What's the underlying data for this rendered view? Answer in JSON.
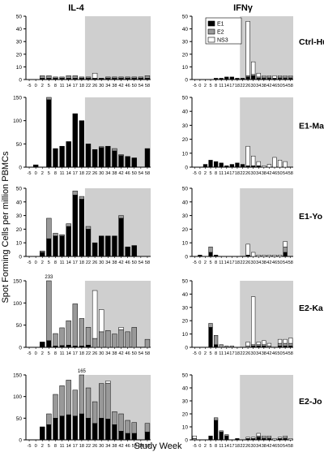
{
  "figure": {
    "col_titles": [
      "IL-4",
      "IFNγ"
    ],
    "row_labels": [
      "Ctrl-Hu",
      "E1-Ma",
      "E1-Yo",
      "E2-Ka",
      "E2-Jo"
    ],
    "ylabel": "Spot Forming Cells per million PBMCs",
    "xlabel": "Study Week",
    "legend": [
      "E1",
      "E2",
      "NS3"
    ],
    "colors": {
      "E1": "#000000",
      "E2": "#999999",
      "NS3": "#ffffff",
      "shade": "#cfcfcf"
    }
  },
  "chart_data": [
    {
      "type": "bar",
      "panel": "IL-4 Ctrl-Hu",
      "stacked": true,
      "categories": [
        "-5",
        "0",
        "2",
        "5",
        "8",
        "11",
        "14",
        "17",
        "18",
        "22",
        "26",
        "30",
        "34",
        "38",
        "42",
        "46",
        "50",
        "54",
        "58"
      ],
      "ylim": [
        0,
        50
      ],
      "yticks": [
        0,
        10,
        20,
        30,
        40,
        50
      ],
      "shaded_from": "22",
      "series": [
        {
          "name": "E1",
          "values": [
            0,
            0,
            1,
            1,
            1,
            1,
            1,
            1,
            1,
            1,
            1,
            1,
            1,
            1,
            1,
            1,
            1,
            1,
            1
          ]
        },
        {
          "name": "E2",
          "values": [
            0,
            0,
            2,
            2,
            1,
            1,
            2,
            2,
            1,
            1,
            0,
            0,
            1,
            1,
            1,
            1,
            1,
            1,
            2
          ]
        },
        {
          "name": "NS3",
          "values": [
            0,
            0,
            0,
            0,
            0,
            0,
            0,
            0,
            0,
            0,
            4,
            0,
            0,
            0,
            0,
            0,
            0,
            0,
            0
          ]
        }
      ]
    },
    {
      "type": "bar",
      "panel": "IFNγ Ctrl-Hu",
      "stacked": true,
      "categories": [
        "-5",
        "0",
        "2",
        "5",
        "8",
        "11",
        "14",
        "17",
        "18",
        "22",
        "26",
        "30",
        "34",
        "38",
        "42",
        "46",
        "50",
        "54",
        "58"
      ],
      "ylim": [
        0,
        50
      ],
      "yticks": [
        0,
        10,
        20,
        30,
        40,
        50
      ],
      "shaded_from": "22",
      "series": [
        {
          "name": "E1",
          "values": [
            0,
            0,
            0,
            0,
            1,
            1,
            2,
            2,
            1,
            1,
            2,
            3,
            1,
            1,
            1,
            1,
            1,
            1,
            1
          ]
        },
        {
          "name": "E2",
          "values": [
            0,
            0,
            0,
            0,
            0,
            0,
            0,
            0,
            0,
            0,
            1,
            1,
            1,
            1,
            1,
            0,
            1,
            1,
            1
          ]
        },
        {
          "name": "NS3",
          "values": [
            0,
            0,
            0,
            0,
            0,
            0,
            0,
            0,
            0,
            0,
            43,
            10,
            3,
            1,
            1,
            2,
            1,
            1,
            1
          ]
        }
      ]
    },
    {
      "type": "bar",
      "panel": "IL-4 E1-Ma",
      "stacked": true,
      "categories": [
        "-5",
        "0",
        "2",
        "5",
        "8",
        "11",
        "14",
        "17",
        "18",
        "22",
        "26",
        "30",
        "34",
        "38",
        "42",
        "46",
        "50",
        "54",
        "58"
      ],
      "ylim": [
        0,
        150
      ],
      "yticks": [
        0,
        50,
        100,
        150
      ],
      "shaded_from": "22",
      "series": [
        {
          "name": "E1",
          "values": [
            0,
            5,
            0,
            145,
            40,
            45,
            55,
            115,
            100,
            50,
            38,
            42,
            45,
            35,
            25,
            23,
            20,
            0,
            40
          ]
        },
        {
          "name": "E2",
          "values": [
            0,
            0,
            0,
            5,
            0,
            0,
            0,
            0,
            0,
            0,
            0,
            2,
            0,
            5,
            2,
            0,
            0,
            0,
            0
          ]
        },
        {
          "name": "NS3",
          "values": [
            0,
            0,
            0,
            0,
            0,
            0,
            0,
            0,
            0,
            0,
            0,
            0,
            0,
            0,
            0,
            0,
            0,
            0,
            0
          ]
        }
      ]
    },
    {
      "type": "bar",
      "panel": "IFNγ E1-Ma",
      "stacked": true,
      "categories": [
        "-5",
        "0",
        "2",
        "5",
        "8",
        "11",
        "14",
        "17",
        "18",
        "22",
        "26",
        "30",
        "34",
        "38",
        "42",
        "46",
        "50",
        "54",
        "58"
      ],
      "ylim": [
        0,
        50
      ],
      "yticks": [
        0,
        10,
        20,
        30,
        40,
        50
      ],
      "shaded_from": "22",
      "series": [
        {
          "name": "E1",
          "values": [
            0,
            0,
            2,
            5,
            4,
            3,
            1,
            2,
            3,
            2,
            1,
            1,
            1,
            0,
            0,
            0,
            0,
            0,
            0
          ]
        },
        {
          "name": "E2",
          "values": [
            0,
            0,
            0,
            0,
            0,
            0,
            0,
            0,
            0,
            0,
            0,
            0,
            0,
            0,
            0,
            0,
            0,
            0,
            0
          ]
        },
        {
          "name": "NS3",
          "values": [
            0,
            0,
            0,
            0,
            0,
            0,
            0,
            0,
            0,
            0,
            14,
            7,
            3,
            1,
            2,
            7,
            5,
            4,
            0
          ]
        }
      ]
    },
    {
      "type": "bar",
      "panel": "IL-4 E1-Yo",
      "stacked": true,
      "categories": [
        "-5",
        "0",
        "2",
        "5",
        "8",
        "11",
        "14",
        "17",
        "18",
        "22",
        "26",
        "30",
        "34",
        "38",
        "42",
        "46",
        "50",
        "54",
        "58"
      ],
      "ylim": [
        0,
        50
      ],
      "yticks": [
        0,
        10,
        20,
        30,
        40,
        50
      ],
      "shaded_from": "22",
      "series": [
        {
          "name": "E1",
          "values": [
            0,
            0,
            3,
            13,
            15,
            15,
            22,
            45,
            42,
            20,
            10,
            15,
            15,
            15,
            28,
            7,
            8,
            0,
            0
          ]
        },
        {
          "name": "E2",
          "values": [
            0,
            0,
            1,
            15,
            2,
            1,
            2,
            3,
            2,
            2,
            0,
            0,
            0,
            0,
            2,
            0,
            0,
            0,
            0
          ]
        },
        {
          "name": "NS3",
          "values": [
            0,
            0,
            0,
            0,
            0,
            0,
            0,
            0,
            0,
            0,
            0,
            0,
            0,
            0,
            0,
            0,
            0,
            0,
            0
          ]
        }
      ]
    },
    {
      "type": "bar",
      "panel": "IFNγ E1-Yo",
      "stacked": true,
      "categories": [
        "-5",
        "0",
        "2",
        "5",
        "8",
        "11",
        "14",
        "17",
        "18",
        "22",
        "26",
        "30",
        "34",
        "38",
        "42",
        "46",
        "50",
        "54",
        "58"
      ],
      "ylim": [
        0,
        50
      ],
      "yticks": [
        0,
        10,
        20,
        30,
        40,
        50
      ],
      "shaded_from": "22",
      "series": [
        {
          "name": "E1",
          "values": [
            0,
            1,
            0,
            3,
            1,
            0,
            0,
            0,
            0,
            0,
            1,
            0,
            0,
            0,
            0,
            0,
            0,
            3,
            0
          ]
        },
        {
          "name": "E2",
          "values": [
            0,
            0,
            0,
            4,
            0,
            0,
            0,
            0,
            0,
            0,
            0,
            0,
            0,
            0,
            0,
            0,
            0,
            4,
            0
          ]
        },
        {
          "name": "NS3",
          "values": [
            0,
            0,
            0,
            0,
            0,
            0,
            0,
            0,
            0,
            0,
            8,
            3,
            1,
            1,
            1,
            1,
            1,
            4,
            0
          ]
        }
      ]
    },
    {
      "type": "bar",
      "panel": "IL-4 E2-Ka",
      "stacked": true,
      "categories": [
        "-5",
        "0",
        "2",
        "5",
        "8",
        "11",
        "14",
        "17",
        "18",
        "22",
        "26",
        "30",
        "34",
        "38",
        "42",
        "46",
        "50",
        "54",
        "58"
      ],
      "ylim": [
        0,
        150
      ],
      "yticks": [
        0,
        50,
        100,
        150
      ],
      "shaded_from": "22",
      "series": [
        {
          "name": "E1",
          "values": [
            0,
            0,
            12,
            15,
            3,
            4,
            5,
            3,
            3,
            5,
            0,
            0,
            0,
            0,
            0,
            0,
            0,
            0,
            0
          ]
        },
        {
          "name": "E2",
          "values": [
            0,
            0,
            0,
            135,
            28,
            40,
            55,
            95,
            62,
            40,
            20,
            35,
            38,
            30,
            40,
            35,
            45,
            0,
            18
          ]
        },
        {
          "name": "NS3",
          "values": [
            0,
            0,
            0,
            0,
            0,
            0,
            0,
            0,
            0,
            0,
            108,
            50,
            0,
            0,
            5,
            0,
            0,
            0,
            0
          ]
        }
      ],
      "annotations": [
        "233"
      ]
    },
    {
      "type": "bar",
      "panel": "IFNγ E2-Ka",
      "stacked": true,
      "categories": [
        "-5",
        "0",
        "2",
        "5",
        "8",
        "11",
        "14",
        "17",
        "18",
        "22",
        "26",
        "30",
        "34",
        "38",
        "42",
        "46",
        "50",
        "54",
        "58"
      ],
      "ylim": [
        0,
        50
      ],
      "yticks": [
        0,
        10,
        20,
        30,
        40,
        50
      ],
      "shaded_from": "22",
      "series": [
        {
          "name": "E1",
          "values": [
            0,
            0,
            0,
            15,
            2,
            0,
            0,
            0,
            0,
            0,
            0,
            1,
            1,
            1,
            0,
            0,
            1,
            1,
            1
          ]
        },
        {
          "name": "E2",
          "values": [
            0,
            0,
            0,
            3,
            7,
            2,
            1,
            1,
            0,
            0,
            1,
            1,
            1,
            1,
            1,
            0,
            2,
            2,
            2
          ]
        },
        {
          "name": "NS3",
          "values": [
            0,
            0,
            0,
            0,
            0,
            0,
            0,
            0,
            0,
            0,
            3,
            36,
            2,
            3,
            2,
            0,
            3,
            3,
            4
          ]
        }
      ]
    },
    {
      "type": "bar",
      "panel": "IL-4 E2-Jo",
      "stacked": true,
      "categories": [
        "-5",
        "0",
        "2",
        "5",
        "8",
        "11",
        "14",
        "17",
        "18",
        "22",
        "26",
        "30",
        "34",
        "38",
        "42",
        "46",
        "50",
        "54",
        "58"
      ],
      "ylim": [
        0,
        150
      ],
      "yticks": [
        0,
        50,
        100,
        150
      ],
      "shaded_from": "22",
      "series": [
        {
          "name": "E1",
          "values": [
            0,
            0,
            30,
            35,
            50,
            55,
            58,
            55,
            60,
            50,
            38,
            50,
            48,
            35,
            20,
            15,
            15,
            0,
            18
          ]
        },
        {
          "name": "E2",
          "values": [
            0,
            0,
            0,
            25,
            55,
            70,
            80,
            60,
            95,
            70,
            50,
            80,
            83,
            30,
            40,
            30,
            25,
            0,
            20
          ]
        },
        {
          "name": "NS3",
          "values": [
            0,
            0,
            0,
            0,
            0,
            0,
            0,
            0,
            0,
            0,
            0,
            0,
            5,
            0,
            0,
            0,
            0,
            0,
            0
          ]
        }
      ],
      "annotations": [
        "165"
      ]
    },
    {
      "type": "bar",
      "panel": "IFNγ E2-Jo",
      "stacked": true,
      "categories": [
        "-5",
        "0",
        "2",
        "5",
        "8",
        "11",
        "14",
        "17",
        "18",
        "22",
        "26",
        "30",
        "34",
        "38",
        "42",
        "46",
        "50",
        "54",
        "58"
      ],
      "ylim": [
        0,
        50
      ],
      "yticks": [
        0,
        10,
        20,
        30,
        40,
        50
      ],
      "shaded_from": "22",
      "series": [
        {
          "name": "E1",
          "values": [
            0,
            0,
            0,
            3,
            15,
            6,
            3,
            0,
            1,
            0,
            1,
            1,
            2,
            1,
            1,
            0,
            1,
            1,
            0
          ]
        },
        {
          "name": "E2",
          "values": [
            1,
            0,
            0,
            0,
            2,
            1,
            1,
            0,
            0,
            0,
            0,
            0,
            1,
            1,
            1,
            0,
            0,
            1,
            0
          ]
        },
        {
          "name": "NS3",
          "values": [
            2,
            0,
            0,
            0,
            0,
            0,
            0,
            0,
            0,
            0,
            1,
            1,
            2,
            1,
            1,
            1,
            1,
            1,
            1
          ]
        }
      ]
    }
  ]
}
